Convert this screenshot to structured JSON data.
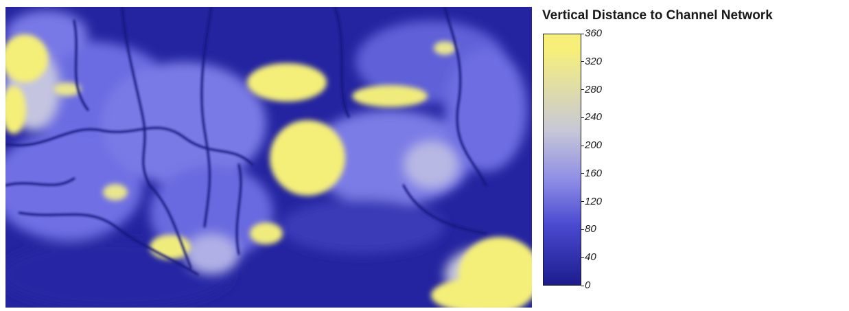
{
  "legend": {
    "title": "Vertical Distance to Channel Network",
    "ticks": [
      "360",
      "320",
      "280",
      "240",
      "200",
      "160",
      "120",
      "80",
      "40",
      "0"
    ],
    "range": [
      0,
      360
    ],
    "colors": {
      "low": "#1c1c8e",
      "mid_low": "#4a4ad0",
      "mid": "#8e8ee6",
      "mid_high": "#c8c8d6",
      "high": "#f6f07a"
    }
  },
  "map": {
    "description_colors": {
      "channel": "#1a1a78",
      "lowland": "#2525a0",
      "slope": "#6a6ae0",
      "ridge": "#f3ee78"
    }
  }
}
